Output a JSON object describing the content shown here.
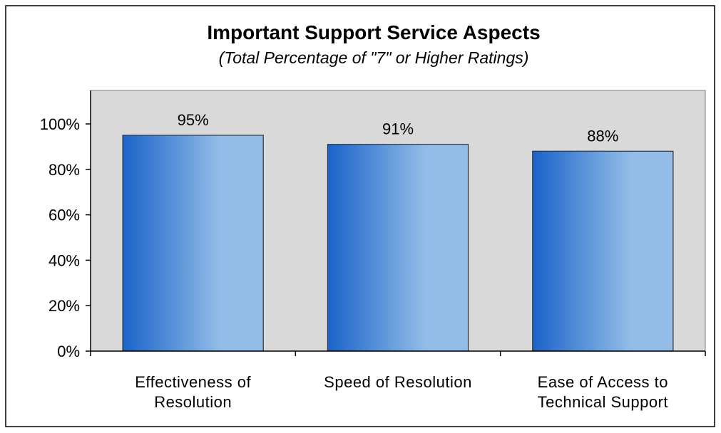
{
  "chart_data": {
    "type": "bar",
    "title": "Important Support Service Aspects",
    "subtitle": "(Total Percentage of \"7\" or Higher Ratings)",
    "categories": [
      [
        "Effectiveness of",
        "Resolution"
      ],
      [
        "Speed of Resolution"
      ],
      [
        "Ease of Access to",
        "Technical Support"
      ]
    ],
    "values": [
      95,
      91,
      88
    ],
    "data_labels": [
      "95%",
      "91%",
      "88%"
    ],
    "ylim": [
      0,
      100
    ],
    "y_ticks": [
      0,
      20,
      40,
      60,
      80,
      100
    ],
    "y_tick_labels": [
      "0%",
      "20%",
      "40%",
      "60%",
      "80%",
      "100%"
    ],
    "xlabel": "",
    "ylabel": "",
    "grid": false,
    "legend": "none",
    "colors": {
      "plot_background": "#d9d9d9",
      "bar_dark": "#1a63c9",
      "bar_light": "#93bde8",
      "bar_outline": "#333333"
    }
  }
}
